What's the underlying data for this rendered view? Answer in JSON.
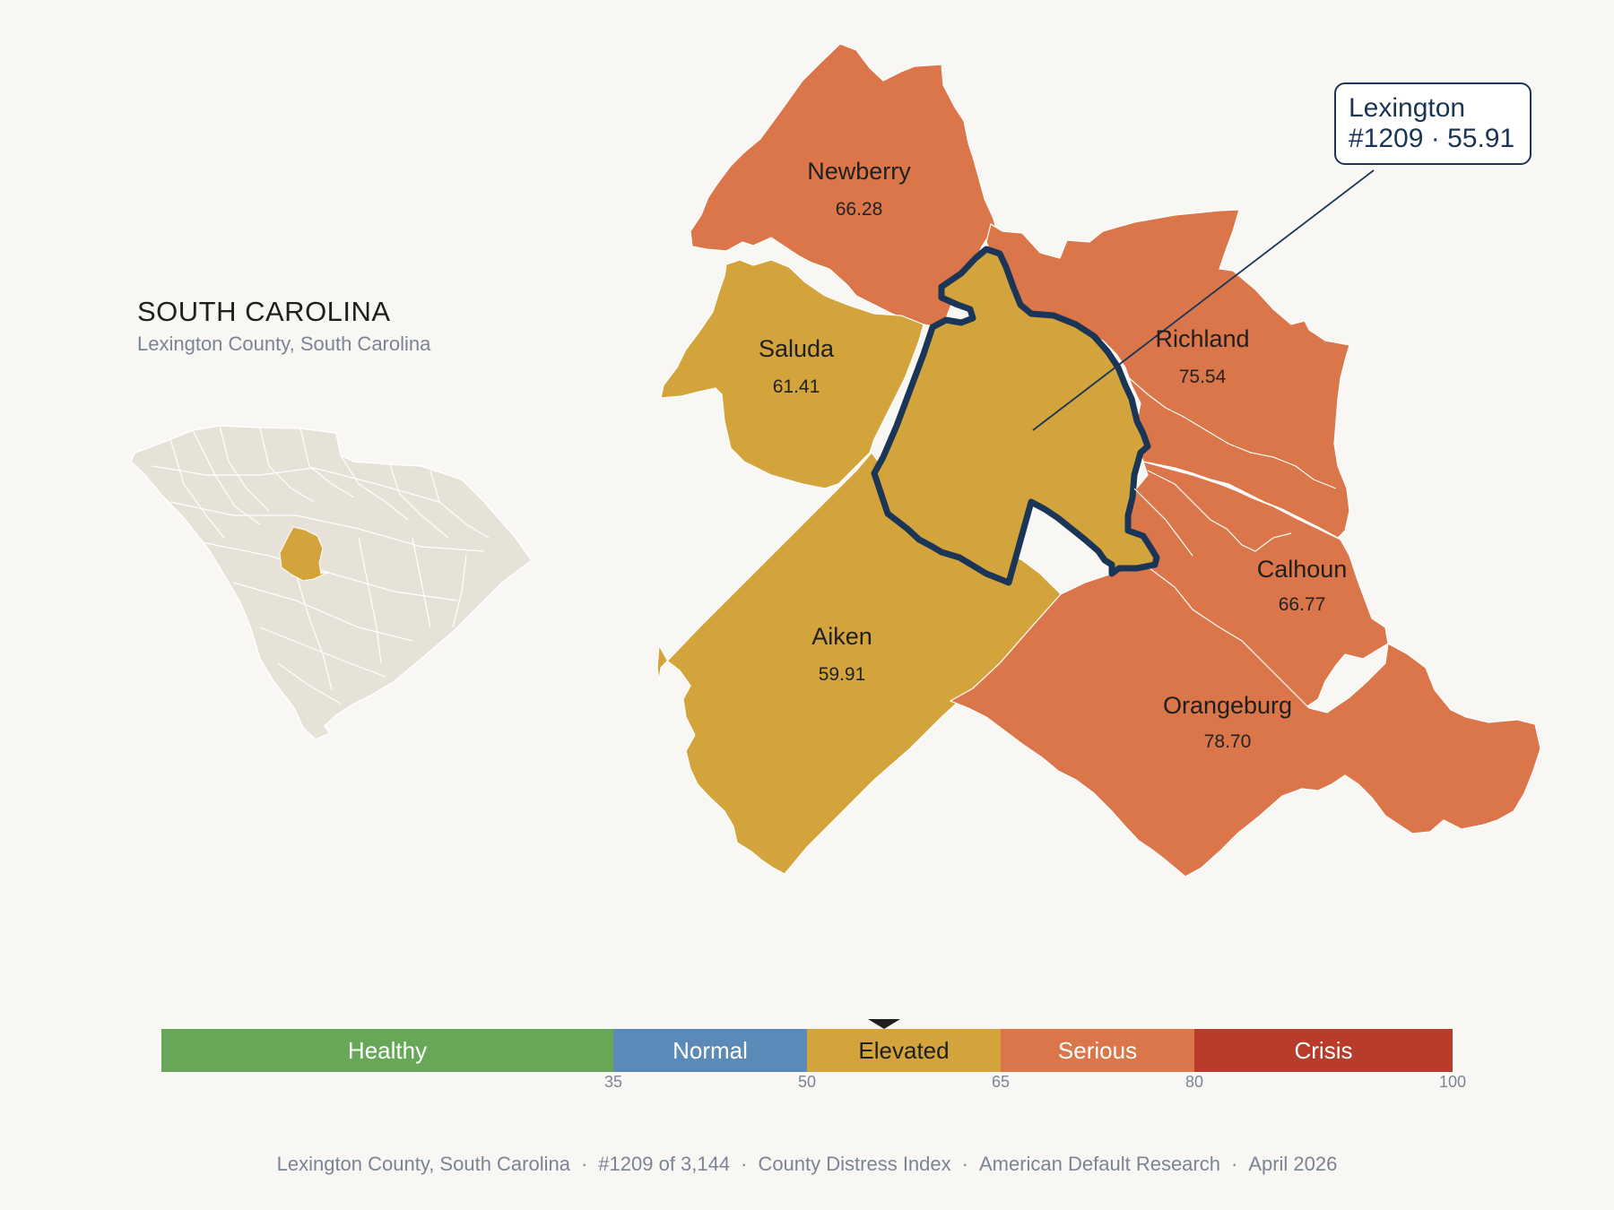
{
  "state": {
    "title": "SOUTH CAROLINA",
    "subtitle": "Lexington County, South Carolina"
  },
  "callout": {
    "line1": "Lexington",
    "line2": "#1209 · 55.91"
  },
  "counties": [
    {
      "name": "Newberry",
      "value": "66.28",
      "category": "Serious"
    },
    {
      "name": "Saluda",
      "value": "61.41",
      "category": "Elevated"
    },
    {
      "name": "Richland",
      "value": "75.54",
      "category": "Serious"
    },
    {
      "name": "Calhoun",
      "value": "66.77",
      "category": "Serious"
    },
    {
      "name": "Aiken",
      "value": "59.91",
      "category": "Elevated"
    },
    {
      "name": "Orangeburg",
      "value": "78.70",
      "category": "Serious"
    },
    {
      "name": "Lexington",
      "value": "55.91",
      "category": "Elevated",
      "highlighted": true
    }
  ],
  "scale": {
    "segments": [
      {
        "label": "Healthy",
        "color": "#66a758"
      },
      {
        "label": "Normal",
        "color": "#5b8ab8"
      },
      {
        "label": "Elevated",
        "color": "#d3a43b"
      },
      {
        "label": "Serious",
        "color": "#db764a"
      },
      {
        "label": "Crisis",
        "color": "#b83b2b"
      }
    ],
    "ticks": [
      "35",
      "50",
      "65",
      "80",
      "100"
    ],
    "marker_value": 55.91
  },
  "footer": {
    "county": "Lexington County, South Carolina",
    "rank": "#1209 of 3,144",
    "index": "County Distress Index",
    "source": "American Default Research",
    "date": "April 2026"
  },
  "colors": {
    "background": "#f9f7f3",
    "serious": "#db764a",
    "elevated": "#d3a43b",
    "highlight_outline": "#1b3557",
    "state_fill": "#e7e2d7"
  }
}
